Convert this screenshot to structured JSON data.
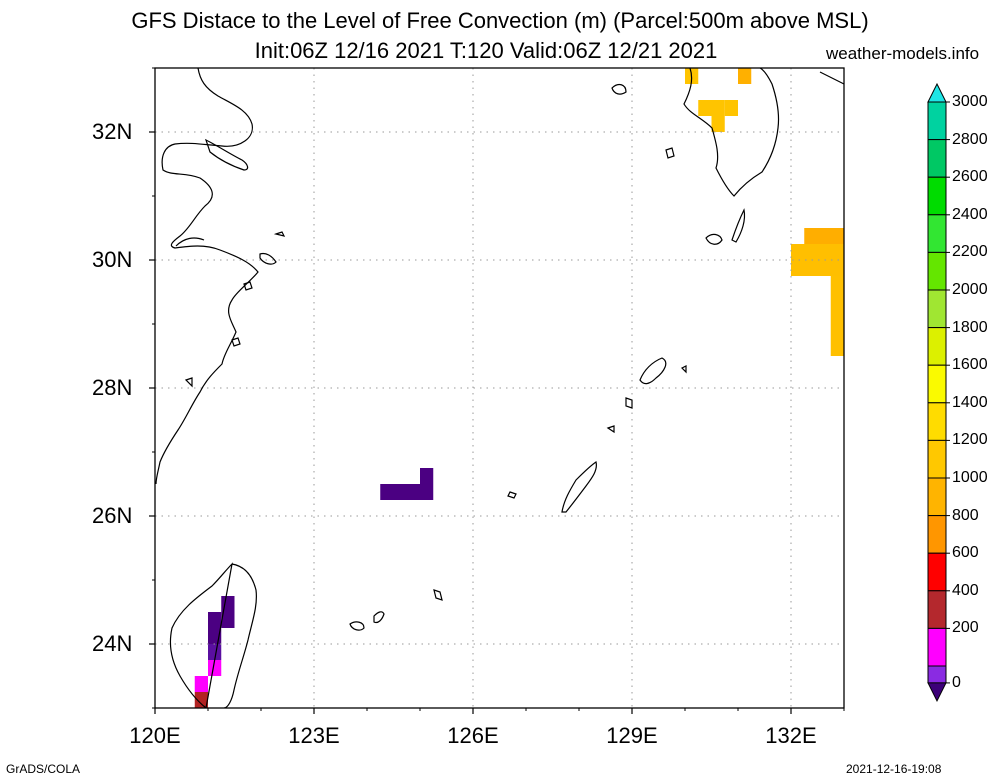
{
  "header": {
    "title_line1": "GFS Distace to the Level of Free Convection (m) (Parcel:500m above MSL)",
    "title_line2": "Init:06Z 12/16 2021 T:120 Valid:06Z 12/21 2021",
    "site": "weather-models.info"
  },
  "map": {
    "lon_range": [
      120,
      133
    ],
    "lat_range": [
      23,
      33
    ],
    "lat_ticks": [
      {
        "value": 32,
        "label": "32N"
      },
      {
        "value": 30,
        "label": "30N"
      },
      {
        "value": 28,
        "label": "28N"
      },
      {
        "value": 26,
        "label": "26N"
      },
      {
        "value": 24,
        "label": "24N"
      }
    ],
    "lon_ticks": [
      {
        "value": 120,
        "label": "120E"
      },
      {
        "value": 123,
        "label": "123E"
      },
      {
        "value": 126,
        "label": "126E"
      },
      {
        "value": 129,
        "label": "129E"
      },
      {
        "value": 132,
        "label": "132E"
      }
    ],
    "grid": true,
    "cells": [
      {
        "lon": 124.25,
        "lat": 26.25,
        "lon2": 125.25,
        "lat2": 26.5,
        "color": "#4b0082"
      },
      {
        "lon": 125.0,
        "lat": 26.5,
        "lon2": 125.25,
        "lat2": 26.75,
        "color": "#4b0082"
      },
      {
        "lon": 121.0,
        "lat": 24.0,
        "lon2": 121.25,
        "lat2": 24.5,
        "color": "#4b0082"
      },
      {
        "lon": 121.25,
        "lat": 24.25,
        "lon2": 121.5,
        "lat2": 24.75,
        "color": "#4b0082"
      },
      {
        "lon": 121.0,
        "lat": 23.75,
        "lon2": 121.25,
        "lat2": 24.0,
        "color": "#5a0fa0"
      },
      {
        "lon": 121.0,
        "lat": 23.5,
        "lon2": 121.25,
        "lat2": 23.75,
        "color": "#ff00ff"
      },
      {
        "lon": 120.75,
        "lat": 23.25,
        "lon2": 121.0,
        "lat2": 23.5,
        "color": "#ff00ff"
      },
      {
        "lon": 120.75,
        "lat": 23.0,
        "lon2": 121.0,
        "lat2": 23.25,
        "color": "#b22222"
      },
      {
        "lon": 132.0,
        "lat": 29.75,
        "lon2": 133.0,
        "lat2": 30.25,
        "color": "#ffbf00"
      },
      {
        "lon": 132.25,
        "lat": 30.25,
        "lon2": 133.0,
        "lat2": 30.5,
        "color": "#ffae00"
      },
      {
        "lon": 132.75,
        "lat": 28.5,
        "lon2": 133.0,
        "lat2": 29.75,
        "color": "#ffc000"
      },
      {
        "lon": 130.5,
        "lat": 32.0,
        "lon2": 130.75,
        "lat2": 32.5,
        "color": "#ffc400"
      },
      {
        "lon": 130.75,
        "lat": 32.25,
        "lon2": 131.0,
        "lat2": 32.5,
        "color": "#ffc400"
      },
      {
        "lon": 130.25,
        "lat": 32.25,
        "lon2": 130.5,
        "lat2": 32.5,
        "color": "#ffc400"
      },
      {
        "lon": 130.0,
        "lat": 32.75,
        "lon2": 130.25,
        "lat2": 33.0,
        "color": "#ffc400"
      },
      {
        "lon": 131.0,
        "lat": 32.75,
        "lon2": 131.25,
        "lat2": 33.0,
        "color": "#ffb000"
      }
    ]
  },
  "colorbar": {
    "levels": [
      {
        "value": 3000,
        "label": "3000",
        "color": "#1ee6e6"
      },
      {
        "value": 2800,
        "label": "2800",
        "color": "#00d2a0"
      },
      {
        "value": 2600,
        "label": "2600",
        "color": "#00c864"
      },
      {
        "value": 2400,
        "label": "2400",
        "color": "#00dc00"
      },
      {
        "value": 2200,
        "label": "2200",
        "color": "#32e632"
      },
      {
        "value": 2000,
        "label": "2000",
        "color": "#64e600"
      },
      {
        "value": 1800,
        "label": "1800",
        "color": "#a0e632"
      },
      {
        "value": 1600,
        "label": "1600",
        "color": "#dcf000"
      },
      {
        "value": 1400,
        "label": "1400",
        "color": "#fafa00"
      },
      {
        "value": 1200,
        "label": "1200",
        "color": "#ffdc00"
      },
      {
        "value": 1000,
        "label": "1000",
        "color": "#ffc800"
      },
      {
        "value": 800,
        "label": "800",
        "color": "#ffb400"
      },
      {
        "value": 600,
        "label": "600",
        "color": "#ff9600"
      },
      {
        "value": 400,
        "label": "400",
        "color": "#ff0000"
      },
      {
        "value": 200,
        "label": "200",
        "color": "#b4282d"
      },
      {
        "value": 0,
        "label": "0",
        "color": "#ff00ff"
      }
    ],
    "bottom_colors": [
      "#8a2be2",
      "#3c0078"
    ],
    "top_color": "#1ee6e6"
  },
  "footer": {
    "left": "GrADS/COLA",
    "right": "2021-12-16-19:08"
  }
}
